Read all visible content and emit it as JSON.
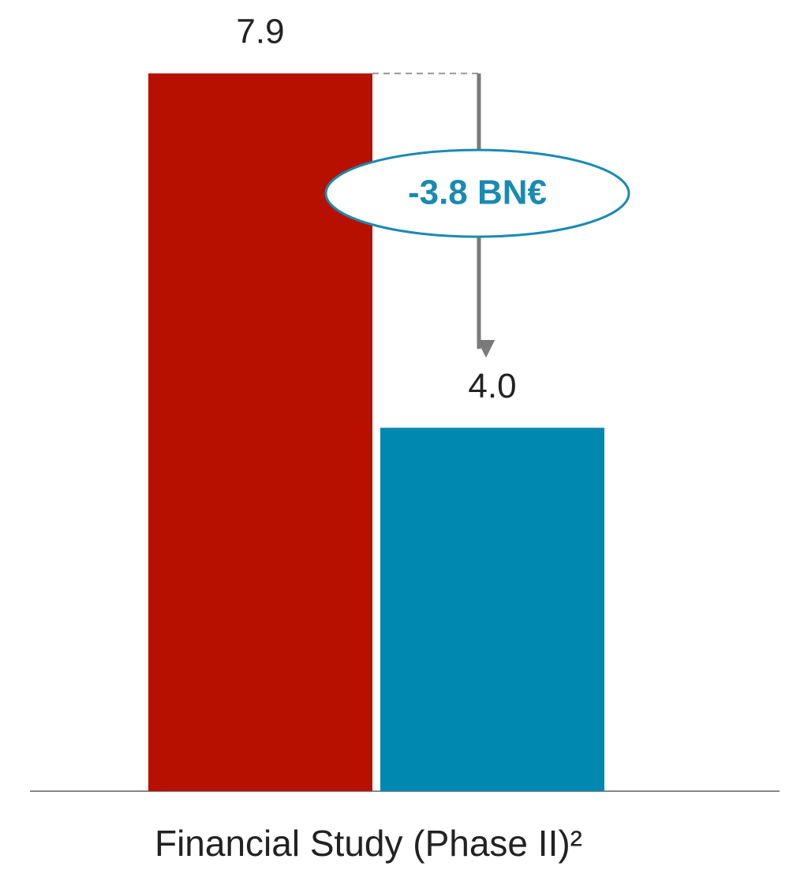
{
  "chart_data": {
    "type": "bar",
    "categories": [
      "Financial Study (Phase II)²"
    ],
    "series": [
      {
        "color": "#b81000",
        "values": [
          7.9
        ]
      },
      {
        "color": "#0088b0",
        "values": [
          4.0
        ],
        "value_labels": [
          "4.0"
        ]
      }
    ],
    "annotation": "-3.8 BN€",
    "annotation_color": "#1a8ab0",
    "ylim": [
      0,
      8.5
    ]
  }
}
